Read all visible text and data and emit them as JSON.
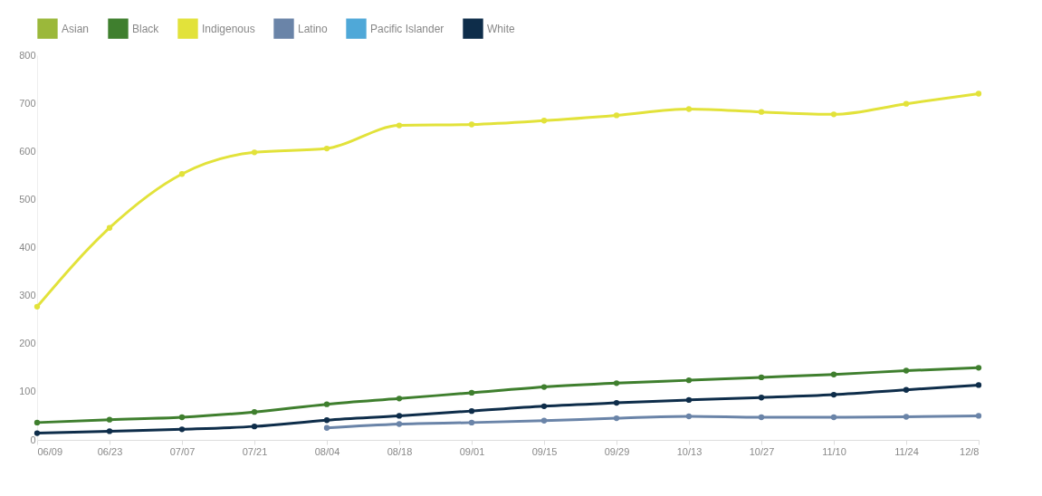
{
  "chart_data": {
    "type": "line",
    "categories": [
      "06/09",
      "06/23",
      "07/07",
      "07/21",
      "08/04",
      "08/18",
      "09/01",
      "09/15",
      "09/29",
      "10/13",
      "10/27",
      "11/10",
      "11/24",
      "12/8"
    ],
    "series": [
      {
        "name": "Asian",
        "color": "#9bb83a",
        "values": [
          null,
          null,
          null,
          null,
          null,
          null,
          null,
          null,
          null,
          null,
          null,
          null,
          null,
          null
        ]
      },
      {
        "name": "Black",
        "color": "#3f7f2e",
        "values": [
          36,
          42,
          47,
          58,
          74,
          86,
          98,
          110,
          118,
          124,
          130,
          136,
          144,
          150
        ]
      },
      {
        "name": "Indigenous",
        "color": "#e2e23a",
        "values": [
          277,
          441,
          553,
          598,
          606,
          654,
          656,
          664,
          675,
          688,
          682,
          677,
          699,
          720
        ]
      },
      {
        "name": "Latino",
        "color": "#6a84a8",
        "values": [
          null,
          null,
          null,
          null,
          25,
          33,
          36,
          40,
          45,
          49,
          47,
          47,
          48,
          50
        ]
      },
      {
        "name": "Pacific Islander",
        "color": "#4fa8d8",
        "values": [
          null,
          null,
          null,
          null,
          null,
          null,
          null,
          null,
          null,
          null,
          null,
          null,
          null,
          null
        ]
      },
      {
        "name": "White",
        "color": "#0e2d4a",
        "values": [
          14,
          18,
          22,
          28,
          41,
          50,
          60,
          70,
          77,
          83,
          88,
          94,
          104,
          114
        ]
      }
    ],
    "ylim": [
      0,
      800
    ],
    "yticks": [
      0,
      100,
      200,
      300,
      400,
      500,
      600,
      700,
      800
    ],
    "grid": false,
    "legend": "top",
    "marker": "circle",
    "line_style": "solid"
  }
}
